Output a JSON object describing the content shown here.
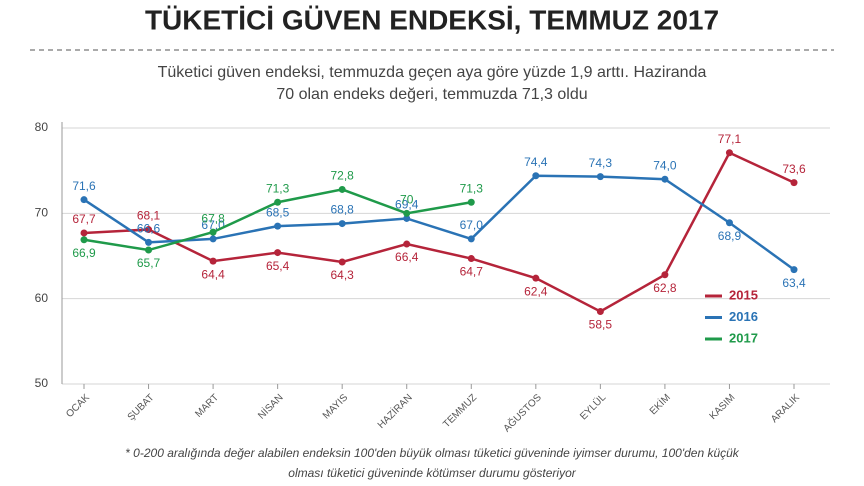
{
  "chart_data": {
    "type": "line",
    "title": "TÜKETİCİ GÜVEN ENDEKSİ, TEMMUZ 2017",
    "subtitle": [
      "Tüketici güven endeksi, temmuzda geçen aya göre yüzde 1,9 arttı. Haziranda",
      "70 olan endeks değeri, temmuzda 71,3 oldu"
    ],
    "footnote": [
      "* 0-200 aralığında değer alabilen endeksin 100'den büyük olması tüketici güveninde iyimser durumu, 100'den küçük",
      "olması tüketici güveninde kötümser durumu gösteriyor"
    ],
    "categories": [
      "OCAK",
      "ŞUBAT",
      "MART",
      "NİSAN",
      "MAYIS",
      "HAZİRAN",
      "TEMMUZ",
      "AĞUSTOS",
      "EYLÜL",
      "EKİM",
      "KASIM",
      "ARALIK"
    ],
    "series": [
      {
        "name": "2015",
        "color": "#b5243a",
        "values": [
          67.7,
          68.1,
          64.4,
          65.4,
          64.3,
          66.4,
          64.7,
          62.4,
          58.5,
          62.8,
          77.1,
          73.6
        ],
        "value_labels": [
          "67,7",
          "68,1",
          "64,4",
          "65,4",
          "64,3",
          "66,4",
          "64,7",
          "62,4",
          "58,5",
          "62,8",
          "77,1",
          "73,6"
        ]
      },
      {
        "name": "2016",
        "color": "#2a73b5",
        "values": [
          71.6,
          66.6,
          67.0,
          68.5,
          68.8,
          69.4,
          67.0,
          74.4,
          74.3,
          74.0,
          68.9,
          63.4
        ],
        "value_labels": [
          "71,6",
          "66,6",
          "67,0",
          "68,5",
          "68,8",
          "69,4",
          "67,0",
          "74,4",
          "74,3",
          "74,0",
          "68,9",
          "63,4"
        ]
      },
      {
        "name": "2017",
        "color": "#1f9a4a",
        "values": [
          66.9,
          65.7,
          67.8,
          71.3,
          72.8,
          70,
          71.3,
          null,
          null,
          null,
          null,
          null
        ],
        "value_labels": [
          "66,9",
          "65,7",
          "67,8",
          "71,3",
          "72,8",
          "70",
          "71,3",
          null,
          null,
          null,
          null,
          null
        ]
      }
    ],
    "ylim": [
      50,
      80
    ],
    "yticks": [
      50,
      60,
      70,
      80
    ],
    "grid": true
  }
}
